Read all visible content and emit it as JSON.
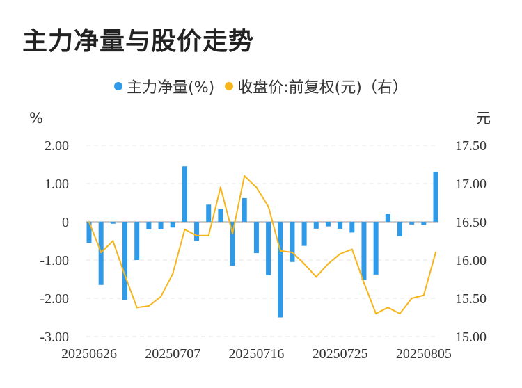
{
  "title": "主力净量与股价走势",
  "colors": {
    "bar": "#2e9ae8",
    "line": "#f5b51b",
    "grid": "#e6e6e6",
    "zero": "#999999"
  },
  "chart_data": {
    "type": "bar+line",
    "legend": [
      {
        "label": "主力净量(%)",
        "color": "#2e9ae8",
        "marker": "dot"
      },
      {
        "label": "收盘价:前复权(元)（右）",
        "color": "#f5b51b",
        "marker": "dot"
      }
    ],
    "legend_position": "top",
    "y_left": {
      "unit": "%",
      "min": -3,
      "max": 2,
      "ticks": [
        "2.00",
        "1.00",
        "0",
        "-1.00",
        "-2.00",
        "-3.00"
      ]
    },
    "y_right": {
      "unit": "元",
      "min": 15.0,
      "max": 17.5,
      "ticks": [
        "17.50",
        "17.00",
        "16.50",
        "16.00",
        "15.50",
        "15.00"
      ]
    },
    "x_labels": [
      "20250626",
      "20250707",
      "20250716",
      "20250725",
      "20250805"
    ],
    "x_label_indices": [
      0,
      7,
      14,
      21,
      28
    ],
    "grid": "horizontal-dashed",
    "series": [
      {
        "name": "主力净量(%)",
        "type": "bar",
        "axis": "left",
        "values": [
          -0.55,
          -1.65,
          -0.05,
          -2.05,
          -1.0,
          -0.2,
          -0.2,
          -0.15,
          1.45,
          -0.5,
          0.45,
          0.33,
          -1.15,
          0.62,
          -0.82,
          -1.4,
          -2.5,
          -1.05,
          -0.63,
          -0.18,
          -0.12,
          -0.18,
          -0.28,
          -1.52,
          -1.38,
          0.2,
          -0.38,
          -0.07,
          -0.08,
          1.3
        ]
      },
      {
        "name": "收盘价:前复权(元)（右）",
        "type": "line",
        "axis": "right",
        "values": [
          16.5,
          16.1,
          16.25,
          15.8,
          15.38,
          15.4,
          15.52,
          15.82,
          16.4,
          16.32,
          16.32,
          16.95,
          16.35,
          17.1,
          16.95,
          16.7,
          16.12,
          16.1,
          15.95,
          15.78,
          15.95,
          16.08,
          16.14,
          15.7,
          15.3,
          15.38,
          15.3,
          15.5,
          15.54,
          16.1
        ]
      }
    ]
  }
}
